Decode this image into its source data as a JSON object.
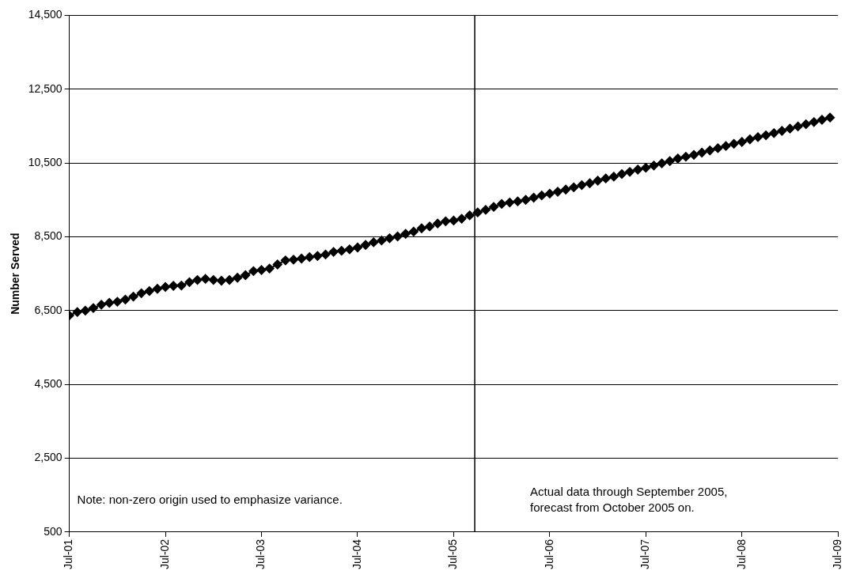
{
  "chart_data": {
    "type": "line",
    "ylabel": "Number Served",
    "x": [
      "2001-07",
      "2001-08",
      "2001-09",
      "2001-10",
      "2001-11",
      "2001-12",
      "2002-01",
      "2002-02",
      "2002-03",
      "2002-04",
      "2002-05",
      "2002-06",
      "2002-07",
      "2002-08",
      "2002-09",
      "2002-10",
      "2002-11",
      "2002-12",
      "2003-01",
      "2003-02",
      "2003-03",
      "2003-04",
      "2003-05",
      "2003-06",
      "2003-07",
      "2003-08",
      "2003-09",
      "2003-10",
      "2003-11",
      "2003-12",
      "2004-01",
      "2004-02",
      "2004-03",
      "2004-04",
      "2004-05",
      "2004-06",
      "2004-07",
      "2004-08",
      "2004-09",
      "2004-10",
      "2004-11",
      "2004-12",
      "2005-01",
      "2005-02",
      "2005-03",
      "2005-04",
      "2005-05",
      "2005-06",
      "2005-07",
      "2005-08",
      "2005-09",
      "2005-10",
      "2005-11",
      "2005-12",
      "2006-01",
      "2006-02",
      "2006-03",
      "2006-04",
      "2006-05",
      "2006-06",
      "2006-07",
      "2006-08",
      "2006-09",
      "2006-10",
      "2006-11",
      "2006-12",
      "2007-01",
      "2007-02",
      "2007-03",
      "2007-04",
      "2007-05",
      "2007-06",
      "2007-07",
      "2007-08",
      "2007-09",
      "2007-10",
      "2007-11",
      "2007-12",
      "2008-01",
      "2008-02",
      "2008-03",
      "2008-04",
      "2008-05",
      "2008-06",
      "2008-07",
      "2008-08",
      "2008-09",
      "2008-10",
      "2008-11",
      "2008-12",
      "2009-01",
      "2009-02",
      "2009-03",
      "2009-04",
      "2009-05",
      "2009-06"
    ],
    "series": [
      {
        "color": "#000000",
        "values": [
          6370,
          6460,
          6500,
          6570,
          6660,
          6710,
          6740,
          6800,
          6880,
          6970,
          7030,
          7090,
          7140,
          7170,
          7180,
          7270,
          7330,
          7360,
          7330,
          7310,
          7330,
          7390,
          7460,
          7570,
          7600,
          7640,
          7750,
          7860,
          7880,
          7910,
          7950,
          7980,
          8020,
          8090,
          8120,
          8160,
          8210,
          8280,
          8350,
          8400,
          8460,
          8510,
          8580,
          8640,
          8730,
          8780,
          8860,
          8920,
          8940,
          8990,
          9080,
          9160,
          9230,
          9310,
          9390,
          9430,
          9460,
          9500,
          9560,
          9620,
          9670,
          9720,
          9780,
          9840,
          9900,
          9950,
          10020,
          10080,
          10130,
          10200,
          10260,
          10320,
          10370,
          10430,
          10490,
          10550,
          10620,
          10670,
          10720,
          10780,
          10840,
          10900,
          10960,
          11020,
          11070,
          11140,
          11200,
          11250,
          11310,
          11370,
          11430,
          11490,
          11550,
          11610,
          11670,
          11730
        ]
      }
    ],
    "xlim": [
      "2001-07",
      "2009-07"
    ],
    "xticks": [
      {
        "value": "2001-07",
        "label": "Jul-01"
      },
      {
        "value": "2002-07",
        "label": "Jul-02"
      },
      {
        "value": "2003-07",
        "label": "Jul-03"
      },
      {
        "value": "2004-07",
        "label": "Jul-04"
      },
      {
        "value": "2005-07",
        "label": "Jul-05"
      },
      {
        "value": "2006-07",
        "label": "Jul-06"
      },
      {
        "value": "2007-07",
        "label": "Jul-07"
      },
      {
        "value": "2008-07",
        "label": "Jul-08"
      },
      {
        "value": "2009-07",
        "label": "Jul-09"
      }
    ],
    "ylim": [
      500,
      14500
    ],
    "yticks": [
      {
        "value": 500,
        "label": "500"
      },
      {
        "value": 2500,
        "label": "2,500"
      },
      {
        "value": 4500,
        "label": "4,500"
      },
      {
        "value": 6500,
        "label": "6,500"
      },
      {
        "value": 8500,
        "label": "8,500"
      },
      {
        "value": 10500,
        "label": "10,500"
      },
      {
        "value": 12500,
        "label": "12,500"
      },
      {
        "value": 14500,
        "label": "14,500"
      }
    ],
    "grid": "y",
    "legend": false,
    "marker": "diamond",
    "line_style": "solid",
    "ref_lines": [
      {
        "axis": "x",
        "value": "2005-09-20",
        "color": "#000000"
      }
    ],
    "annotations": [
      "Note: non-zero origin used to emphasize variance.",
      "Actual data through September 2005,\nforecast from October 2005 on."
    ]
  }
}
